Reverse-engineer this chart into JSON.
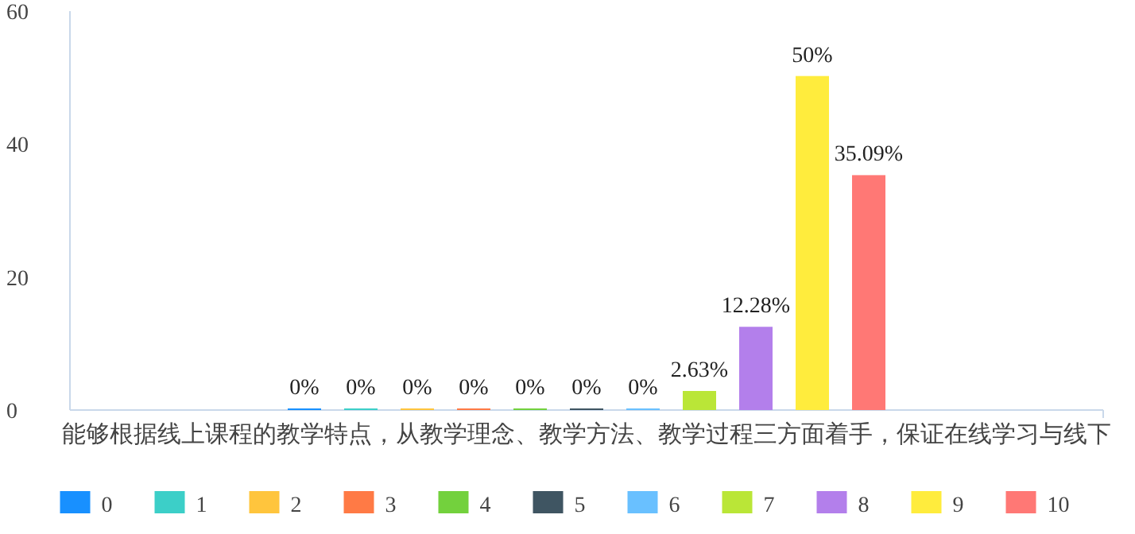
{
  "chart_data": {
    "type": "bar",
    "categories": [
      "能够根据线上课程的教学特点，从教学理念、教学方法、教学过程三方面着手，保证在线学习与线下"
    ],
    "series": [
      {
        "name": "0",
        "color": "#1890ff",
        "values": [
          0
        ],
        "value_labels": [
          "0%"
        ]
      },
      {
        "name": "1",
        "color": "#3ccfc8",
        "values": [
          0
        ],
        "value_labels": [
          "0%"
        ]
      },
      {
        "name": "2",
        "color": "#ffc53d",
        "values": [
          0
        ],
        "value_labels": [
          "0%"
        ]
      },
      {
        "name": "3",
        "color": "#ff7a45",
        "values": [
          0
        ],
        "value_labels": [
          "0%"
        ]
      },
      {
        "name": "4",
        "color": "#73d13d",
        "values": [
          0
        ],
        "value_labels": [
          "0%"
        ]
      },
      {
        "name": "5",
        "color": "#3f5562",
        "values": [
          0
        ],
        "value_labels": [
          "0%"
        ]
      },
      {
        "name": "6",
        "color": "#69c0ff",
        "values": [
          0
        ],
        "value_labels": [
          "0%"
        ]
      },
      {
        "name": "7",
        "color": "#bae637",
        "values": [
          2.63
        ],
        "value_labels": [
          "2.63%"
        ]
      },
      {
        "name": "8",
        "color": "#b37feb",
        "values": [
          12.28
        ],
        "value_labels": [
          "12.28%"
        ]
      },
      {
        "name": "9",
        "color": "#ffec3d",
        "values": [
          50
        ],
        "value_labels": [
          "50%"
        ]
      },
      {
        "name": "10",
        "color": "#ff7875",
        "values": [
          35.09
        ],
        "value_labels": [
          "35.09%"
        ]
      }
    ],
    "ylim": [
      0,
      60
    ],
    "yticks": [
      0,
      20,
      40,
      60
    ],
    "grid": false,
    "legend": "bottom"
  }
}
